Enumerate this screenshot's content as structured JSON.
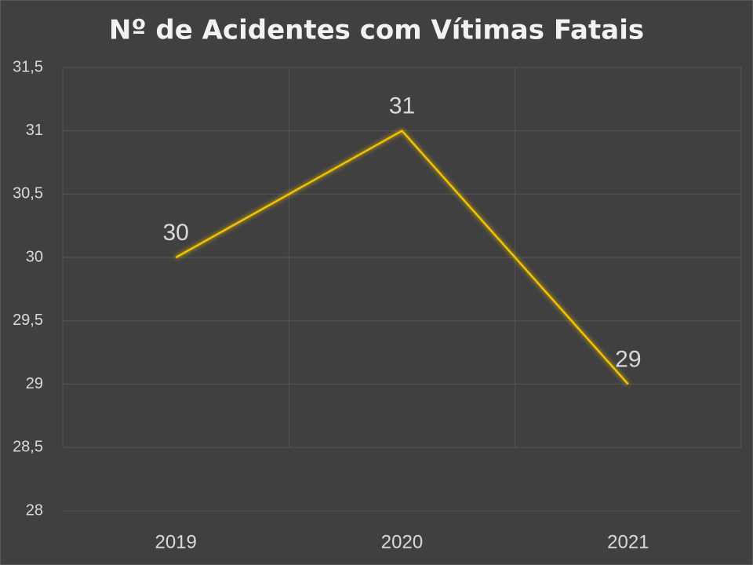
{
  "chart_data": {
    "type": "line",
    "title": "Nº de Acidentes com Vítimas Fatais",
    "categories": [
      "2019",
      "2020",
      "2021"
    ],
    "values": [
      30,
      31,
      29
    ],
    "color": "#f2c200",
    "ylim": [
      28,
      31.5
    ],
    "yticks": [
      28,
      {
        "value": 28.5,
        "label": "28,5"
      },
      29,
      {
        "value": 29.5,
        "label": "29,5"
      },
      30,
      {
        "value": 30.5,
        "label": "30,5"
      },
      31,
      {
        "value": 31.5,
        "label": "31,5"
      }
    ],
    "grid": true
  }
}
